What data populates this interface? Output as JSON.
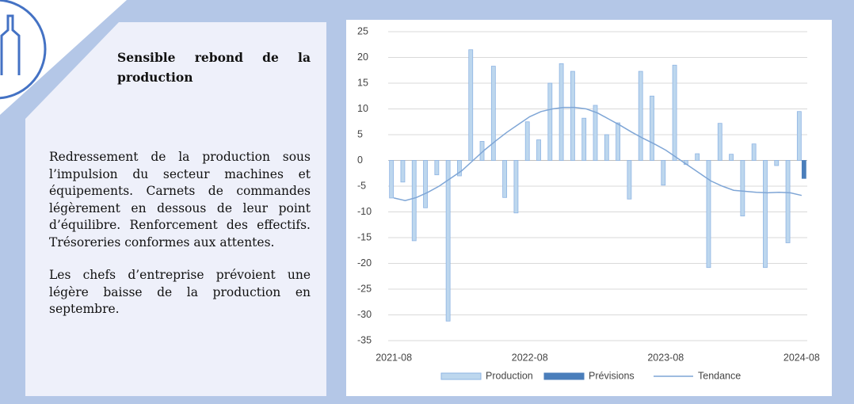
{
  "panel": {
    "title": "Sensible rebond de la production",
    "paragraphs": [
      "Redressement de la production sous l’impulsion du secteur machines et équipements. Carnets de commandes légèrement en dessous de leur point d’équilibre. Renforcement des effectifs. Trésoreries conformes aux attentes.",
      "Les chefs d’entreprise prévoient une légère baisse de la production en septembre."
    ]
  },
  "chart_data": {
    "type": "bar",
    "categories": [
      "2021-08",
      null,
      null,
      null,
      null,
      null,
      null,
      null,
      null,
      null,
      null,
      null,
      "2022-08",
      null,
      null,
      null,
      null,
      null,
      null,
      null,
      null,
      null,
      null,
      null,
      "2023-08",
      null,
      null,
      null,
      null,
      null,
      null,
      null,
      null,
      null,
      null,
      null,
      "2024-08"
    ],
    "series": [
      {
        "name": "Production",
        "color": "#bdd7ee",
        "values": [
          -7.3,
          -4.2,
          -15.6,
          -9.2,
          -2.8,
          -31.2,
          -3,
          21.5,
          3.7,
          18.3,
          -7.2,
          -10.2,
          7.5,
          4,
          15,
          18.8,
          17.3,
          8.2,
          10.7,
          5,
          7.3,
          -7.5,
          17.3,
          12.5,
          -4.8,
          18.5,
          -0.8,
          1.3,
          -20.8,
          7.2,
          1.2,
          -10.8,
          3.2,
          -20.8,
          -1,
          -16,
          9.5
        ]
      },
      {
        "name": "Prévisions",
        "color": "#4a7ebb",
        "values": [
          null,
          null,
          null,
          null,
          null,
          null,
          null,
          null,
          null,
          null,
          null,
          null,
          null,
          null,
          null,
          null,
          null,
          null,
          null,
          null,
          null,
          null,
          null,
          null,
          null,
          null,
          null,
          null,
          null,
          null,
          null,
          null,
          null,
          null,
          null,
          null,
          -3.5
        ]
      },
      {
        "name": "Tendance",
        "color": "#7fa6d6",
        "type": "line",
        "values": [
          -7.3,
          -7.8,
          -7.2,
          -6.2,
          -5,
          -3.5,
          -2,
          0,
          2,
          3.8,
          5.5,
          7,
          8.5,
          9.5,
          10,
          10.3,
          10.3,
          10,
          9.2,
          8,
          6.8,
          5.5,
          4.3,
          3.2,
          2,
          0.5,
          -1,
          -2.5,
          -4,
          -5,
          -5.8,
          -6,
          -6.2,
          -6.3,
          -6.2,
          -6.3,
          -6.8
        ]
      }
    ],
    "ylim": [
      -35,
      25
    ],
    "yticks": [
      -35,
      -30,
      -25,
      -20,
      -15,
      -10,
      -5,
      0,
      5,
      10,
      15,
      20,
      25
    ],
    "grid": true,
    "legend": "bottom"
  }
}
